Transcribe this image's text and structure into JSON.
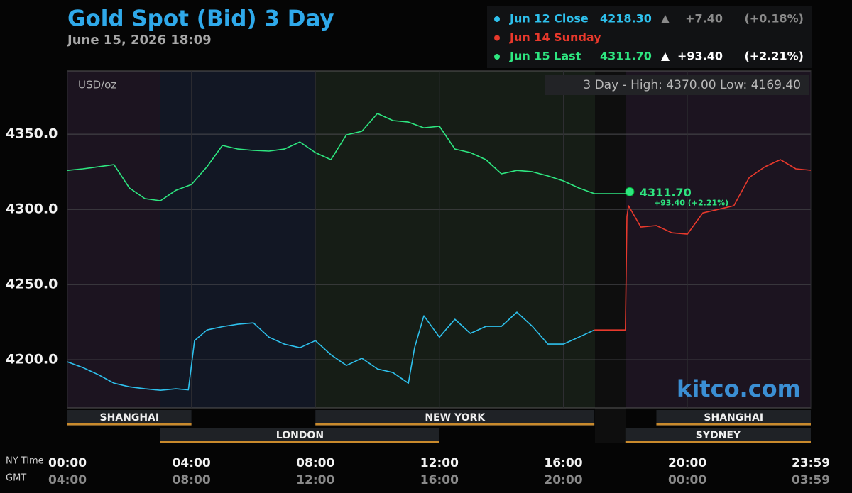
{
  "chart_data": {
    "type": "line",
    "title": "Gold Spot (Bid) 3 Day",
    "subtitle": "June 15, 2026 18:09",
    "unit_label": "USD/oz",
    "range_note": "3 Day - High: 4370.00  Low: 4169.40",
    "watermark": "kitco.com",
    "x_axis_label": "NY Time",
    "x2_axis_label": "GMT",
    "legend": [
      {
        "name": "Jun 12 Close",
        "color": "#2ec0ec",
        "price": "4218.30",
        "change": "+7.40",
        "percent": "(+0.18%)",
        "arrow_color": "#8a8a8a"
      },
      {
        "name": "Jun 14 Sunday",
        "color": "#e8392c"
      },
      {
        "name": "Jun 15 Last",
        "color": "#2ee680",
        "price": "4311.70",
        "change": "+93.40",
        "percent": "(+2.21%)",
        "arrow_color": "#ffffff"
      }
    ],
    "annotation": {
      "price": "4311.70",
      "change": "+93.40 (+2.21%)"
    },
    "xlim": [
      0,
      23.983
    ],
    "xticks": [
      {
        "value": 0,
        "label": "00:00"
      },
      {
        "value": 4,
        "label": "04:00"
      },
      {
        "value": 8,
        "label": "08:00"
      },
      {
        "value": 12,
        "label": "12:00"
      },
      {
        "value": 16,
        "label": "16:00"
      },
      {
        "value": 20,
        "label": "20:00"
      },
      {
        "value": 23.983,
        "label": "23:59"
      }
    ],
    "gmt_labels": [
      "04:00",
      "08:00",
      "12:00",
      "16:00",
      "20:00",
      "00:00",
      "03:59"
    ],
    "ylim": [
      4168,
      4392
    ],
    "yticks": [
      {
        "value": 4200,
        "label": "4200.0"
      },
      {
        "value": 4250,
        "label": "4250.0"
      },
      {
        "value": 4300,
        "label": "4300.0"
      },
      {
        "value": 4350,
        "label": "4350.0"
      }
    ],
    "grid": true,
    "sessions": [
      {
        "name": "SHANGHAI",
        "start": 0,
        "end": 4
      },
      {
        "name": "LONDON",
        "start": 3,
        "end": 12
      },
      {
        "name": "NEW YORK",
        "start": 8,
        "end": 17
      },
      {
        "name": "SHANGHAI",
        "start": 19,
        "end": 23.983
      },
      {
        "name": "SYDNEY",
        "start": 18,
        "end": 23.983
      }
    ],
    "series": [
      {
        "name": "Jun 12 Close",
        "color": "#2ec0ec",
        "x": [
          0,
          0.5,
          1,
          1.5,
          2,
          2.5,
          3,
          3.5,
          3.9,
          4.1,
          4.5,
          5,
          5.5,
          6,
          6.5,
          7,
          7.5,
          8,
          8.5,
          9,
          9.5,
          10,
          10.5,
          11,
          11.2,
          11.5,
          12,
          12.5,
          13,
          13.5,
          14,
          14.5,
          15,
          15.5,
          16,
          16.5,
          17
        ],
        "values": [
          4198.6,
          4194.8,
          4190,
          4184.4,
          4182,
          4180.7,
          4179.7,
          4180.7,
          4180,
          4212.7,
          4219.8,
          4222,
          4223.6,
          4224.5,
          4215,
          4210.4,
          4208,
          4212.7,
          4203.3,
          4196.2,
          4201,
          4193.9,
          4191.5,
          4184.4,
          4208,
          4229.2,
          4215,
          4226.9,
          4217.5,
          4222.2,
          4222.2,
          4231.6,
          4222.2,
          4210.4,
          4210.4,
          4215,
          4219.8
        ]
      },
      {
        "name": "Jun 14 Sunday",
        "color": "#e8392c",
        "x": [
          17,
          18,
          18.05,
          18.1,
          18.5,
          19,
          19.5,
          20,
          20.5,
          21,
          21.5,
          22,
          22.5,
          23,
          23.5,
          23.983
        ],
        "values": [
          4219.8,
          4219.8,
          4295,
          4302.4,
          4288.2,
          4289.2,
          4284.4,
          4283.5,
          4297.6,
          4300,
          4302.4,
          4321.2,
          4328.3,
          4333,
          4326.9,
          4326
        ]
      },
      {
        "name": "Jun 15 Last",
        "color": "#2ee680",
        "x": [
          0,
          0.5,
          1,
          1.5,
          2,
          2.5,
          3,
          3.5,
          4,
          4.5,
          5,
          5.5,
          6,
          6.5,
          7,
          7.5,
          8,
          8.5,
          9,
          9.5,
          10,
          10.5,
          11,
          11.5,
          12,
          12.5,
          13,
          13.5,
          14,
          14.5,
          15,
          15.5,
          16,
          16.5,
          17,
          18.1,
          18.14
        ],
        "values": [
          4325.9,
          4326.9,
          4328.3,
          4329.7,
          4314.2,
          4307.1,
          4305.7,
          4312.7,
          4316.5,
          4328.3,
          4342.5,
          4340.1,
          4339.2,
          4338.7,
          4340.1,
          4344.8,
          4337.7,
          4333,
          4349.5,
          4351.9,
          4363.7,
          4359,
          4358,
          4354.2,
          4355.2,
          4340.1,
          4337.7,
          4333,
          4323.6,
          4325.9,
          4325,
          4322.2,
          4318.9,
          4314.2,
          4310.4,
          4310.4,
          4311.7
        ]
      }
    ]
  }
}
